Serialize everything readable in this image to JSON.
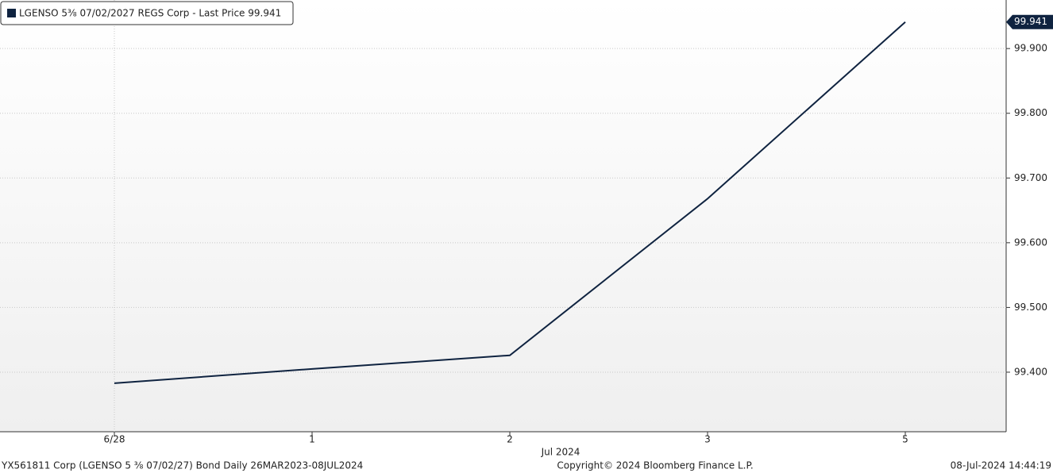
{
  "chart_data": {
    "type": "line",
    "categories": [
      "6/28",
      "1",
      "2",
      "3",
      "5"
    ],
    "x_period_label": "Jul 2024",
    "series": [
      {
        "name": "LGENSO 5⅜  07/02/2027 REGS Corp - Last Price 99.941",
        "color": "#0f2340",
        "values": [
          99.383,
          99.405,
          99.426,
          99.668,
          99.941
        ]
      }
    ],
    "ylim": [
      99.308,
      99.975
    ],
    "yticks": [
      {
        "value": 99.4,
        "label": "99.400"
      },
      {
        "value": 99.5,
        "label": "99.500"
      },
      {
        "value": 99.6,
        "label": "99.600"
      },
      {
        "value": 99.7,
        "label": "99.700"
      },
      {
        "value": 99.8,
        "label": "99.800"
      },
      {
        "value": 99.9,
        "label": "99.900"
      }
    ],
    "grid": true
  },
  "footer": {
    "left": "YX561811 Corp (LGENSO 5 ⅜ 07/02/27) Bond  Daily 26MAR2023-08JUL2024",
    "center": "Copyright© 2024 Bloomberg Finance L.P.",
    "right": "08-Jul-2024 14:44:19"
  }
}
